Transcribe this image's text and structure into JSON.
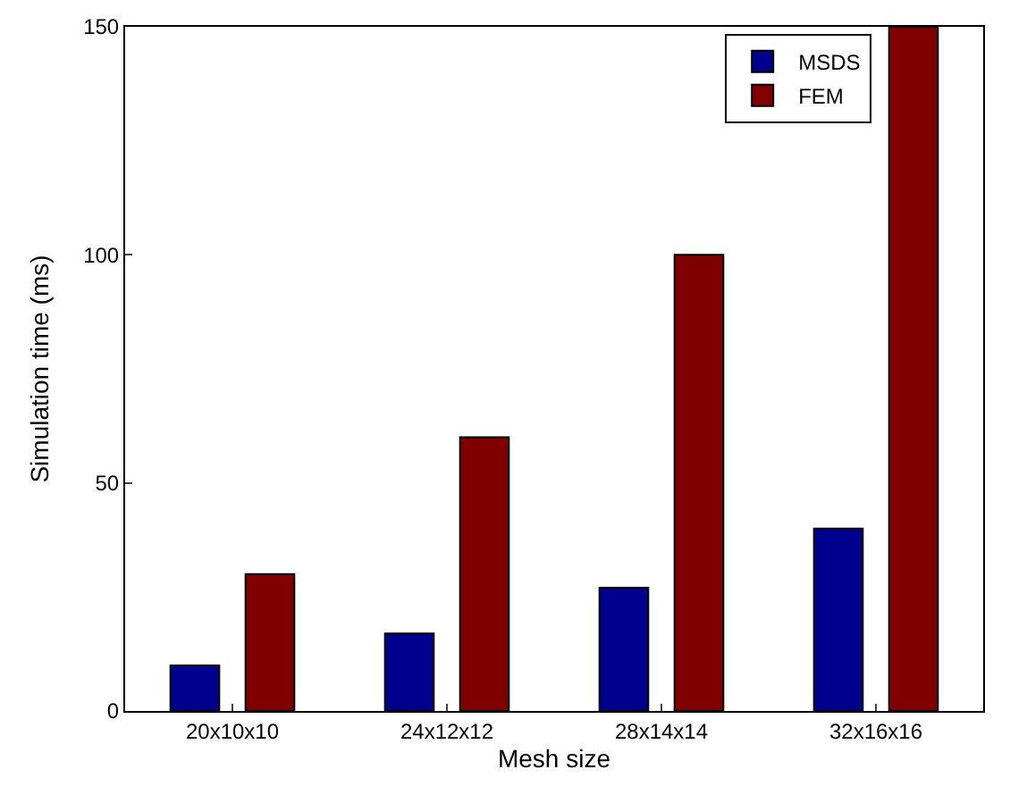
{
  "chart_data": {
    "type": "bar",
    "xlabel": "Mesh size",
    "ylabel": "Simulation time (ms)",
    "categories": [
      "20x10x10",
      "24x12x12",
      "28x14x14",
      "32x16x16"
    ],
    "series": [
      {
        "name": "MSDS",
        "color": "#00008f",
        "values": [
          10,
          17,
          27,
          40
        ]
      },
      {
        "name": "FEM",
        "color": "#800000",
        "values": [
          30,
          60,
          100,
          150
        ]
      }
    ],
    "ylim": [
      0,
      150
    ],
    "yticks": [
      0,
      50,
      100,
      150
    ],
    "legend": "top right"
  }
}
